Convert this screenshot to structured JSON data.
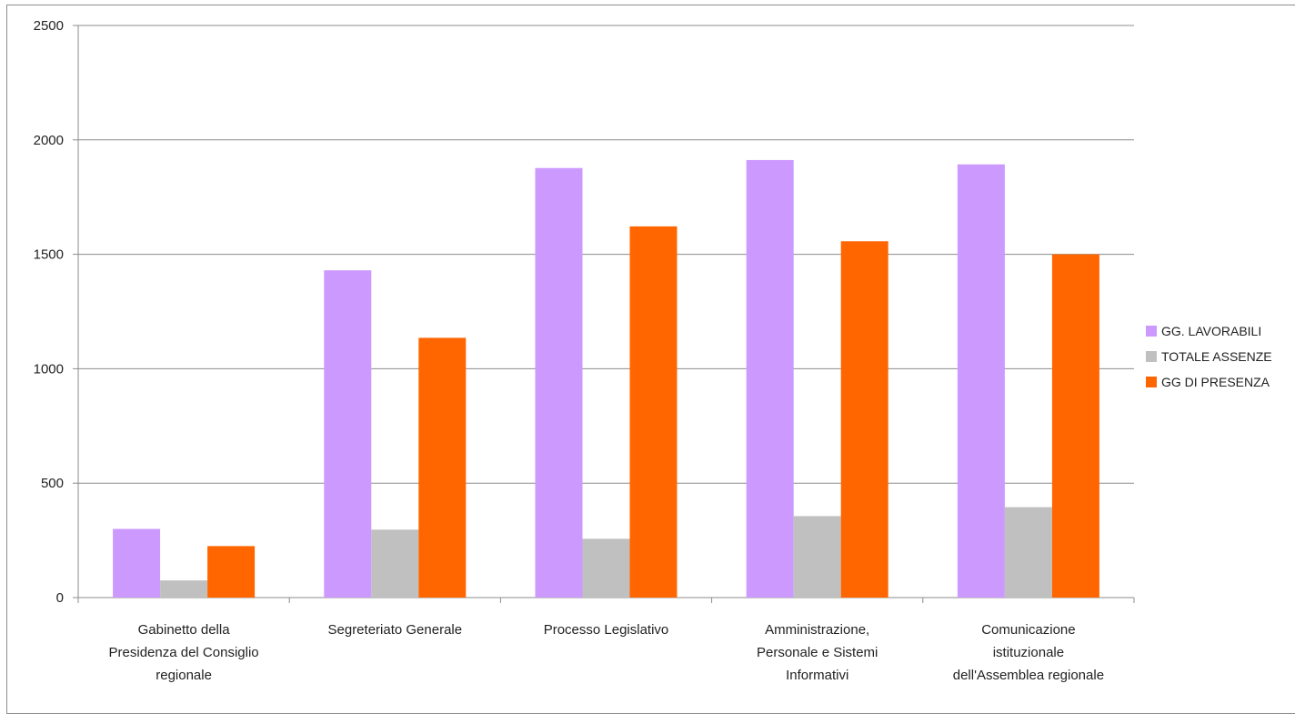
{
  "chart_data": {
    "type": "bar",
    "title": "",
    "xlabel": "",
    "ylabel": "",
    "ylim": [
      0,
      2500
    ],
    "yticks": [
      0,
      500,
      1000,
      1500,
      2000,
      2500
    ],
    "grid": true,
    "legend_position": "right",
    "categories": [
      [
        "Gabinetto della",
        "Presidenza del Consiglio",
        "regionale"
      ],
      [
        "Segreteriato Generale"
      ],
      [
        "Processo Legislativo"
      ],
      [
        "Amministrazione,",
        "Personale e Sistemi",
        "Informativi"
      ],
      [
        "Comunicazione",
        "istituzionale",
        "dell'Assemblea regionale"
      ]
    ],
    "series": [
      {
        "name": "GG. LAVORABILI",
        "color": "#cc99ff",
        "values": [
          300,
          1430,
          1877,
          1912,
          1893
        ]
      },
      {
        "name": "TOTALE ASSENZE",
        "color": "#c0c0c0",
        "values": [
          75,
          297,
          257,
          356,
          395
        ]
      },
      {
        "name": "GG DI PRESENZA",
        "color": "#ff6600",
        "values": [
          225,
          1135,
          1622,
          1557,
          1500
        ]
      }
    ]
  }
}
